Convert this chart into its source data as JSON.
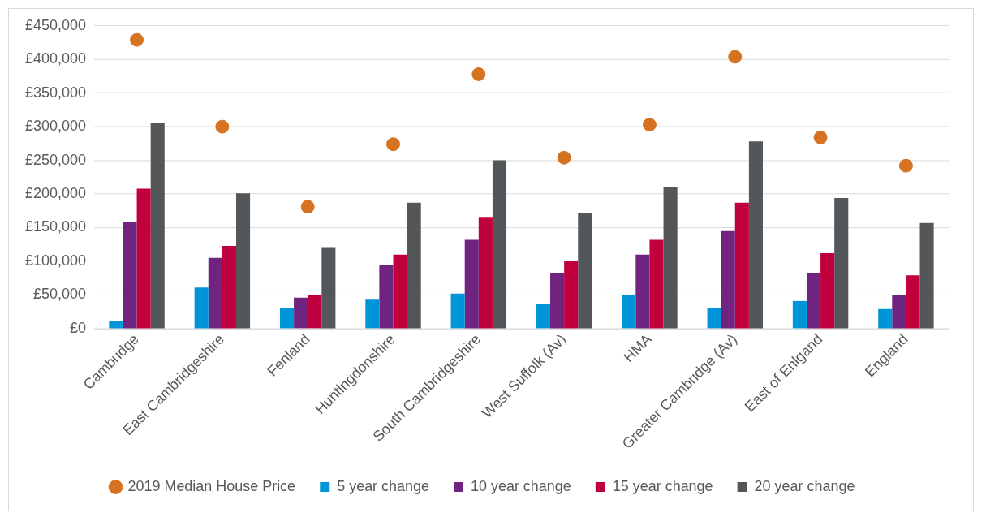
{
  "chart_data": {
    "type": "bar",
    "categories": [
      "Cambridge",
      "East Cambridgeshire",
      "Fenland",
      "Huntingdonshire",
      "South Cambridgeshire",
      "West Suffolk (Av)",
      "HMA",
      "Greater Cambridge (Av)",
      "East of Enlgand",
      "England"
    ],
    "series": [
      {
        "name": "5 year change",
        "color": "#0095d9",
        "values": [
          11000,
          61000,
          31000,
          43000,
          52000,
          37000,
          50000,
          31000,
          41000,
          29000
        ]
      },
      {
        "name": "10 year change",
        "color": "#70237f",
        "values": [
          159000,
          105000,
          46000,
          94000,
          132000,
          83000,
          110000,
          145000,
          83000,
          50000
        ]
      },
      {
        "name": "15 year change",
        "color": "#c0003c",
        "values": [
          208000,
          123000,
          50000,
          110000,
          166000,
          100000,
          132000,
          187000,
          112000,
          79000
        ]
      },
      {
        "name": "20 year change",
        "color": "#53575a",
        "values": [
          305000,
          201000,
          121000,
          187000,
          250000,
          172000,
          210000,
          278000,
          194000,
          157000
        ]
      },
      {
        "name": "2019 Median House Price",
        "type": "scatter",
        "color": "#d57320",
        "x": [
          "Cambridge",
          "East Cambridgeshire",
          "Fenland",
          "Huntingdonshire",
          "South Cambridgeshire",
          "West Suffolk (Av)",
          "HMA",
          "Greater Cambridge (Av)",
          "East of Enlgand",
          "England"
        ],
        "values": [
          429000,
          300000,
          181000,
          274000,
          378000,
          254000,
          303000,
          404000,
          284000,
          242000
        ]
      }
    ],
    "ylim": [
      0,
      450000
    ],
    "yticks": [
      {
        "value": 0,
        "label": "£0"
      },
      {
        "value": 50000,
        "label": "£50,000"
      },
      {
        "value": 100000,
        "label": "£100,000"
      },
      {
        "value": 150000,
        "label": "£150,000"
      },
      {
        "value": 200000,
        "label": "£200,000"
      },
      {
        "value": 250000,
        "label": "£250,000"
      },
      {
        "value": 300000,
        "label": "£300,000"
      },
      {
        "value": 350000,
        "label": "£350,000"
      },
      {
        "value": 400000,
        "label": "£400,000"
      },
      {
        "value": 450000,
        "label": "£450,000"
      }
    ],
    "grid": "y",
    "legend": "bottom",
    "marker": "circle"
  }
}
